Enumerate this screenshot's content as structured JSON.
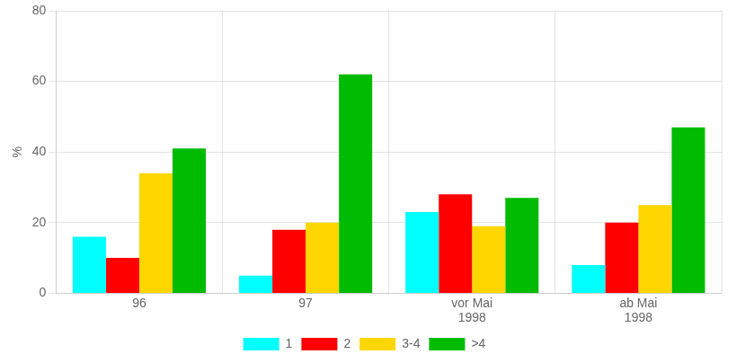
{
  "chart_data": {
    "type": "bar",
    "categories": [
      "96",
      "97",
      "vor Mai\n1998",
      "ab Mai\n1998"
    ],
    "series": [
      {
        "name": "1",
        "color": "#00FFFF",
        "values": [
          16,
          5,
          23,
          8
        ]
      },
      {
        "name": "2",
        "color": "#FF0000",
        "values": [
          10,
          18,
          28,
          20
        ]
      },
      {
        "name": "3-4",
        "color": "#FFD700",
        "values": [
          34,
          20,
          19,
          25
        ]
      },
      {
        "name": ">4",
        "color": "#00BB00",
        "values": [
          41,
          62,
          27,
          47
        ]
      }
    ],
    "ylabel": "%",
    "ylim": [
      0,
      80
    ],
    "yticks": [
      0,
      20,
      40,
      60,
      80
    ],
    "grid": true,
    "legend": "bottom"
  }
}
